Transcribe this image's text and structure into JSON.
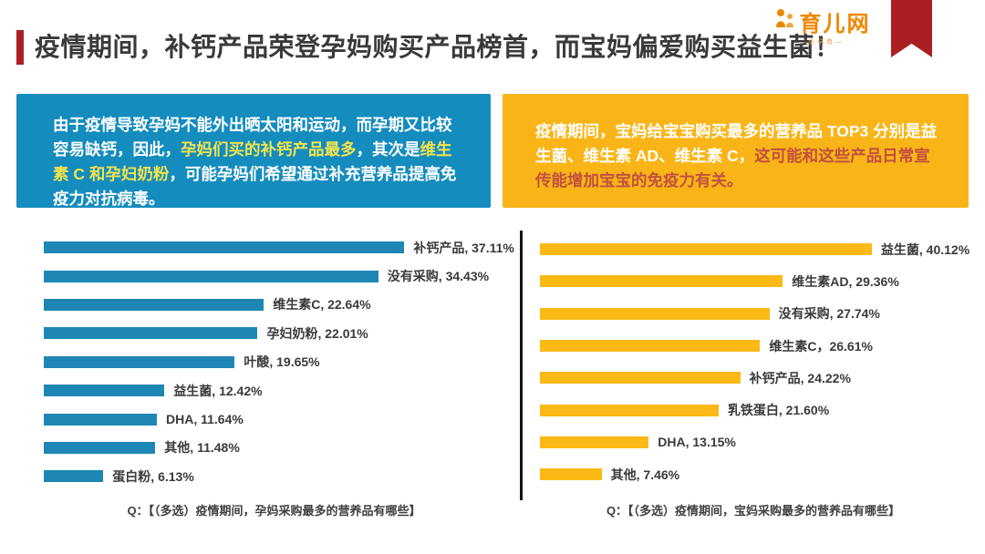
{
  "header": {
    "title": "疫情期间，补钙产品荣登孕妈购买产品榜首，而宝妈偏爱购买益生菌！",
    "logo_text": "育儿网",
    "logo_tagline": "—全孕育—"
  },
  "colors": {
    "accent_red": "#ab1f23",
    "blue": "#148cbe",
    "bar_blue": "#1e86b4",
    "yellow": "#f9b517",
    "bar_yellow": "#fbb916",
    "highlight_yellow": "#f2e44c",
    "highlight_red": "#c2503f",
    "logo_orange": "#ee8700"
  },
  "insight_boxes": {
    "left": {
      "segments": [
        {
          "style": "white",
          "text": "由于疫情导致孕妈不能外出晒太阳和运动，而孕期又比较容易缺钙，因此，"
        },
        {
          "style": "yellow",
          "text": "孕妈们买的补钙产品最多"
        },
        {
          "style": "white",
          "text": "，其次是"
        },
        {
          "style": "yellow",
          "text": "维生素 C 和孕妇奶粉"
        },
        {
          "style": "white",
          "text": "，可能孕妈们希望通过补充营养品提高免疫力对抗病毒。"
        }
      ]
    },
    "right": {
      "segments": [
        {
          "style": "white",
          "text": "疫情期间，宝妈给宝宝购买最多的营养品 TOP3 分别是益生菌、维生素 AD、维生素 C，"
        },
        {
          "style": "red",
          "text": "这可能和这些产品日常宣传能增加宝宝的免疫力有关。"
        }
      ]
    }
  },
  "chart_data": [
    {
      "type": "bar",
      "orientation": "horizontal",
      "color_key": "bar_blue",
      "categories": [
        "补钙产品",
        "没有采购",
        "维生素C",
        "孕妇奶粉",
        "叶酸",
        "益生菌",
        "DHA",
        "其他",
        "蛋白粉"
      ],
      "values": [
        37.11,
        34.43,
        22.64,
        22.01,
        19.65,
        12.42,
        11.64,
        11.48,
        6.13
      ],
      "labels": [
        "补钙产品, 37.11%",
        "没有采购, 34.43%",
        "维生素C, 22.64%",
        "孕妇奶粉, 22.01%",
        "叶酸, 19.65%",
        "益生菌, 12.42%",
        "DHA, 11.64%",
        "其他, 11.48%",
        "蛋白粉, 6.13%"
      ],
      "xmax": 47.4,
      "grid": false,
      "caption": "Q：【（多选）疫情期间，孕妈采购最多的营养品有哪些】"
    },
    {
      "type": "bar",
      "orientation": "horizontal",
      "color_key": "bar_yellow",
      "categories": [
        "益生菌",
        "维生素AD",
        "没有采购",
        "维生素C",
        "补钙产品",
        "乳铁蛋白",
        "DHA",
        "其他"
      ],
      "values": [
        40.12,
        29.36,
        27.74,
        26.61,
        24.22,
        21.6,
        13.15,
        7.46
      ],
      "labels": [
        "益生菌, 40.12%",
        "维生素AD, 29.36%",
        "没有采购, 27.74%",
        "维生素C，26.61%",
        "补钙产品, 24.22%",
        "乳铁蛋白, 21.60%",
        "DHA, 13.15%",
        "其他, 7.46%"
      ],
      "xmax": 51.6,
      "grid": false,
      "caption": "Q：【（多选）疫情期间，宝妈采购最多的营养品有哪些】"
    }
  ]
}
